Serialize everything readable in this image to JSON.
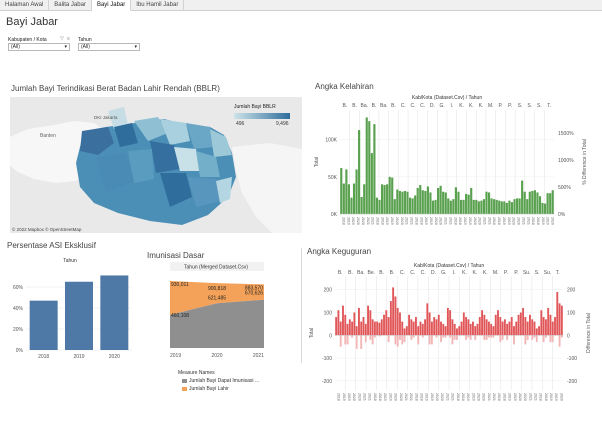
{
  "tabs": [
    {
      "label": "Halaman Awal",
      "active": false
    },
    {
      "label": "Balita Jabar",
      "active": false
    },
    {
      "label": "Bayi Jabar",
      "active": true
    },
    {
      "label": "Ibu Hamil Jabar",
      "active": false
    }
  ],
  "page_title": "Bayi Jabar",
  "filters": {
    "kabupaten": {
      "label": "Kabupaten / Kota",
      "value": "(All)"
    },
    "tahun": {
      "label": "Tahun",
      "value": "(All)"
    }
  },
  "map": {
    "title": "Jumlah Bayi Terindikasi Berat Badan Lahir Rendah (BBLR)",
    "legend_title": "Jumlah Bayi BBLR",
    "legend_min": "496",
    "legend_max": "9,496",
    "color_low": "#cde4ea",
    "color_high": "#2f6d9c",
    "place_labels": [
      "Banten",
      "DKI Jakarta"
    ],
    "credit": "© 2022 Mapbox  © OpenStreetMap"
  },
  "asi": {
    "title": "Persentase ASI Eksklusif",
    "header": "Tahun",
    "chart_data": {
      "type": "bar",
      "categories": [
        "2018",
        "2019",
        "2020"
      ],
      "values": [
        47,
        65,
        71
      ],
      "ylim": [
        0,
        80
      ],
      "yticks": [
        "0%",
        "20%",
        "40%",
        "60%"
      ],
      "color": "#4e79a7"
    }
  },
  "imunisasi": {
    "title": "Imunisasi Dasar",
    "header": "Tahun (Merged Dataset.Csv)",
    "chart_data": {
      "type": "area",
      "x": [
        "2019",
        "2020",
        "2021"
      ],
      "series": [
        {
          "name": "Jumlah Bayi Dapat Imunisasi ...",
          "values": [
            460108,
            621485,
            670626
          ],
          "color": "#8f8f8f"
        },
        {
          "name": "Jumlah Bayi Lahir",
          "values": [
            930011,
            900818,
            883570
          ],
          "color": "#f4a259"
        }
      ],
      "labels": [
        "930,011",
        "900,818",
        "883,570",
        "621,485",
        "670,626",
        "460,108"
      ]
    },
    "legend_title": "Measure Names"
  },
  "kelahiran": {
    "title": "Angka Kelahiran",
    "header": "Kab/Kota (Dataset.Csv) / Tahun",
    "col_labels": [
      "B.",
      "B.",
      "Ba.",
      "B.",
      "Ba.",
      "B.",
      "C.",
      "C.",
      "C.",
      "D.",
      "G.",
      "I.",
      "K.",
      "K.",
      "K.",
      "M.",
      "P.",
      "P.",
      "S.",
      "S.",
      "S.",
      "T."
    ],
    "left_axis_title": "Total",
    "left_ticks": [
      "0K",
      "50K",
      "100K"
    ],
    "right_axis_title": "% Difference in Total",
    "right_ticks": [
      "0%",
      "500%",
      "1000%",
      "1500%"
    ],
    "year_labels": [
      "2018",
      "2019",
      "2020",
      "2021"
    ],
    "color": "#59a14f",
    "chart_data": {
      "type": "bar",
      "ylim": [
        0,
        140000
      ],
      "values": [
        62000,
        41000,
        60000,
        40000,
        22000,
        41000,
        60000,
        113000,
        23000,
        40000,
        130000,
        125000,
        82000,
        121000,
        22000,
        19000,
        40000,
        39000,
        40000,
        50000,
        49000,
        20000,
        33000,
        31000,
        30000,
        31000,
        30000,
        22000,
        21000,
        25000,
        35000,
        39000,
        32000,
        31000,
        37000,
        29000,
        18000,
        19000,
        35000,
        38000,
        30000,
        29000,
        21000,
        18000,
        20000,
        36000,
        30000,
        19000,
        19000,
        27000,
        26000,
        35000,
        19000,
        19000,
        17000,
        18000,
        20000,
        30000,
        29000,
        21000,
        20000,
        19000,
        18000,
        17000,
        17000,
        15000,
        18000,
        16000,
        20000,
        21000,
        21000,
        45000,
        30000,
        20000,
        30000,
        31000,
        32000,
        29000,
        24000,
        15000,
        14000,
        28000,
        28000,
        32000
      ]
    }
  },
  "keguguran": {
    "title": "Angka Keguguran",
    "header": "Kab/Kota (Dataset.Csv) / Tahun",
    "col_labels": [
      "B.",
      "B.",
      "Ba.",
      "Be.",
      "B.",
      "B.",
      "C.",
      "C.",
      "C.",
      "D.",
      "G.",
      "I.",
      "K.",
      "K.",
      "K.",
      "M.",
      "P.",
      "P.",
      "Su.",
      "S.",
      "Su.",
      "T."
    ],
    "left_axis_title": "Total",
    "left_ticks": [
      "-200",
      "-100",
      "0",
      "100",
      "200"
    ],
    "right_axis_title": "Difference in Total",
    "right_ticks": [
      "-200",
      "-100",
      "0",
      "100",
      "200"
    ],
    "year_labels": [
      "2018",
      "2019",
      "2020",
      "2021"
    ],
    "color": "#e15759",
    "color_light": "#f2b6b7",
    "chart_data": {
      "type": "bar",
      "ylim": [
        -240,
        260
      ],
      "values": [
        80,
        110,
        60,
        130,
        90,
        50,
        70,
        60,
        100,
        40,
        120,
        60,
        80,
        50,
        130,
        110,
        70,
        60,
        60,
        55,
        70,
        90,
        110,
        80,
        150,
        210,
        170,
        120,
        100,
        60,
        30,
        40,
        90,
        70,
        60,
        80,
        40,
        60,
        50,
        70,
        140,
        100,
        60,
        80,
        70,
        90,
        60,
        50,
        40,
        120,
        110,
        70,
        50,
        30,
        40,
        60,
        100,
        80,
        70,
        50,
        60,
        40,
        50,
        80,
        110,
        90,
        70,
        60,
        50,
        40,
        90,
        110,
        80,
        60,
        70,
        50,
        60,
        80,
        40,
        60,
        90,
        100,
        120,
        80,
        60,
        90,
        70,
        60,
        30,
        40,
        110,
        80,
        70,
        120,
        90,
        60,
        80,
        190,
        140,
        130
      ],
      "diff_values": [
        0,
        30,
        -50,
        70,
        -40,
        -40,
        20,
        -10,
        40,
        -60,
        80,
        -60,
        20,
        -30,
        80,
        -20,
        -40,
        -10,
        0,
        -5,
        15,
        20,
        20,
        -30,
        70,
        60,
        -40,
        -50,
        -20,
        -40,
        -30,
        10,
        50,
        -20,
        -10,
        20,
        -40,
        20,
        -10,
        20,
        70,
        -40,
        -40,
        20,
        -10,
        20,
        -30,
        -10,
        -10,
        80,
        -10,
        -40,
        -20,
        -20,
        10,
        20,
        40,
        -20,
        -10,
        -20,
        10,
        -20,
        10,
        30,
        30,
        -20,
        -20,
        -10,
        -10,
        -10,
        50,
        20,
        -30,
        -20,
        10,
        -20,
        10,
        20,
        -40,
        20,
        30,
        10,
        20,
        -40,
        -20,
        30,
        -20,
        -10,
        -30,
        10,
        70,
        -30,
        -10,
        50,
        -30,
        -30,
        20,
        110,
        -50,
        -10
      ]
    }
  }
}
